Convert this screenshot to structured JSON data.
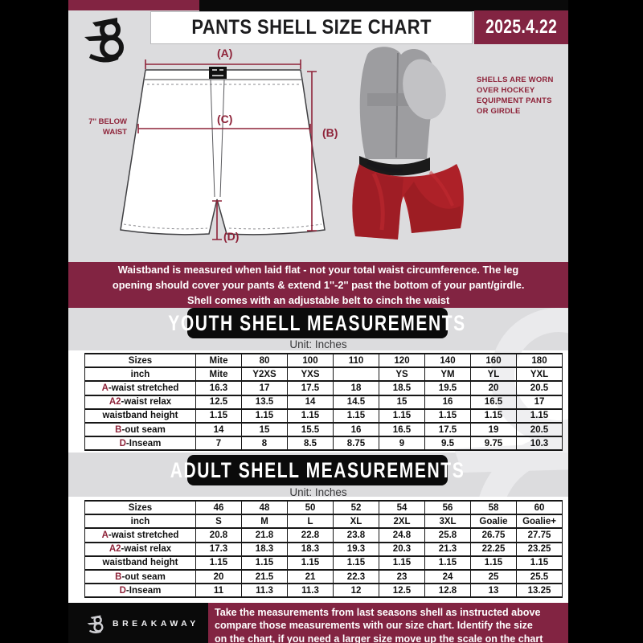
{
  "header": {
    "title": "PANTS SHELL SIZE CHART",
    "date": "2025.4.22"
  },
  "diagram": {
    "label_a": "(A)",
    "label_b": "(B)",
    "label_c": "(C)",
    "label_d": "(D)",
    "waist_note_line1": "7'' BELOW",
    "waist_note_line2": "WAIST",
    "shell_note_lines": [
      "SHELLS ARE WORN",
      "OVER HOCKEY",
      "EQUIPMENT PANTS",
      "OR GIRDLE"
    ]
  },
  "notice": {
    "lines": [
      "Waistband is measured when laid flat - not your total waist circumference. The leg",
      "opening should cover your pants & extend 1''-2'' past the bottom of your pant/girdle.",
      "Shell comes with an adjustable belt to cinch the waist"
    ]
  },
  "youth": {
    "heading": "YOUTH SHELL MEASUREMENTS",
    "unit": "Unit: Inches",
    "table": {
      "rows": [
        {
          "prefix": "",
          "label": "Sizes",
          "values": [
            "Mite",
            "80",
            "100",
            "110",
            "120",
            "140",
            "160",
            "180"
          ]
        },
        {
          "prefix": "",
          "label": "inch",
          "values": [
            "Mite",
            "Y2XS",
            "YXS",
            "",
            "YS",
            "YM",
            "YL",
            "YXL"
          ]
        },
        {
          "prefix": "A",
          "label": "-waist stretched",
          "values": [
            "16.3",
            "17",
            "17.5",
            "18",
            "18.5",
            "19.5",
            "20",
            "20.5"
          ]
        },
        {
          "prefix": "A2",
          "label": "-waist relax",
          "values": [
            "12.5",
            "13.5",
            "14",
            "14.5",
            "15",
            "16",
            "16.5",
            "17"
          ]
        },
        {
          "prefix": "",
          "label": "waistband height",
          "values": [
            "1.15",
            "1.15",
            "1.15",
            "1.15",
            "1.15",
            "1.15",
            "1.15",
            "1.15"
          ]
        },
        {
          "prefix": "B",
          "label": "-out seam",
          "values": [
            "14",
            "15",
            "15.5",
            "16",
            "16.5",
            "17.5",
            "19",
            "20.5"
          ]
        },
        {
          "prefix": "D",
          "label": "-Inseam",
          "values": [
            "7",
            "8",
            "8.5",
            "8.75",
            "9",
            "9.5",
            "9.75",
            "10.3"
          ]
        }
      ]
    }
  },
  "adult": {
    "heading": "ADULT SHELL MEASUREMENTS",
    "unit": "Unit: Inches",
    "table": {
      "rows": [
        {
          "prefix": "",
          "label": "Sizes",
          "values": [
            "46",
            "48",
            "50",
            "52",
            "54",
            "56",
            "58",
            "60"
          ]
        },
        {
          "prefix": "",
          "label": "inch",
          "values": [
            "S",
            "M",
            "L",
            "XL",
            "2XL",
            "3XL",
            "Goalie",
            "Goalie+"
          ]
        },
        {
          "prefix": "A",
          "label": "-waist stretched",
          "values": [
            "20.8",
            "21.8",
            "22.8",
            "23.8",
            "24.8",
            "25.8",
            "26.75",
            "27.75"
          ]
        },
        {
          "prefix": "A2",
          "label": "-waist relax",
          "values": [
            "17.3",
            "18.3",
            "18.3",
            "19.3",
            "20.3",
            "21.3",
            "22.25",
            "23.25"
          ]
        },
        {
          "prefix": "",
          "label": "waistband height",
          "values": [
            "1.15",
            "1.15",
            "1.15",
            "1.15",
            "1.15",
            "1.15",
            "1.15",
            "1.15"
          ]
        },
        {
          "prefix": "B",
          "label": "-out seam",
          "values": [
            "20",
            "21.5",
            "21",
            "22.3",
            "23",
            "24",
            "25",
            "25.5"
          ]
        },
        {
          "prefix": "D",
          "label": "-Inseam",
          "values": [
            "11",
            "11.3",
            "11.3",
            "12",
            "12.5",
            "12.8",
            "13",
            "13.25"
          ]
        }
      ]
    }
  },
  "footer": {
    "brand": "BREAKAWAY",
    "lines": [
      "Take the measurements from last seasons shell as instructed above",
      "compare those measurements  with our size chart. Identify the size",
      "on the chart, if you need a larger size move up the scale on the chart"
    ]
  },
  "colors": {
    "maroon": "#822442",
    "background_gray": "#dcdcde",
    "black": "#0a0a0a",
    "shell_red": "#ad2128",
    "measurement_maroon": "#8e2339"
  }
}
